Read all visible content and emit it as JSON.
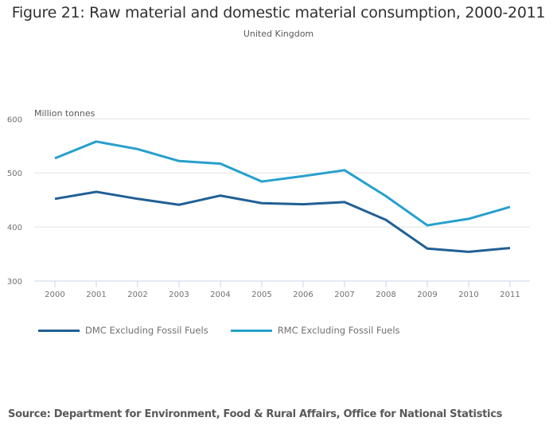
{
  "chart_data": {
    "type": "line",
    "title": "Figure 21: Raw material and domestic material consumption, 2000-2011",
    "subtitle": "United Kingdom",
    "xlabel": "",
    "ylabel": "Million tonnes",
    "x": [
      "2000",
      "2001",
      "2002",
      "2003",
      "2004",
      "2005",
      "2006",
      "2007",
      "2008",
      "2009",
      "2010",
      "2011"
    ],
    "ylim": [
      300,
      600
    ],
    "yticks": [
      300,
      400,
      500,
      600
    ],
    "grid": true,
    "legend_position": "bottom-left",
    "series": [
      {
        "name": "DMC Excluding Fossil Fuels",
        "color": "#206095",
        "values": [
          452,
          465,
          452,
          441,
          458,
          444,
          442,
          446,
          413,
          360,
          354,
          361
        ]
      },
      {
        "name": "RMC Excluding Fossil Fuels",
        "color": "#27a0cc",
        "values": [
          527,
          558,
          544,
          522,
          517,
          484,
          494,
          505,
          457,
          403,
          415,
          437
        ]
      }
    ],
    "source": "Source: Department for Environment, Food & Rural Affairs, Office for National Statistics"
  }
}
